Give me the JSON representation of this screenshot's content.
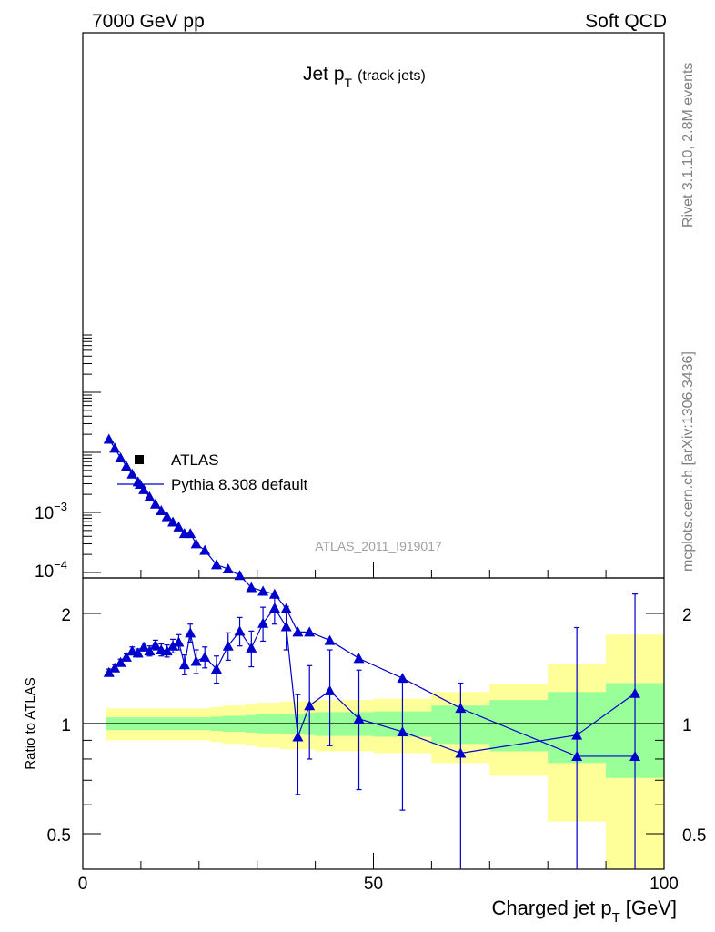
{
  "header": {
    "left": "7000 GeV pp",
    "right": "Soft QCD"
  },
  "side_text": {
    "rivet": "Rivet 3.1.10,  2.8M events",
    "mcplots": "mcplots.cern.ch [arXiv:1306.3436]"
  },
  "chart_data": {
    "type": "line",
    "title_main": "Jet p",
    "title_sub": "T",
    "title_suffix": "(track jets)",
    "watermark": "ATLAS_2011_I919017",
    "xlabel_main": "Charged jet p",
    "xlabel_sub": "T",
    "xlabel_suffix": "[GeV]",
    "ylabel_ratio": "Ratio to ATLAS",
    "xlim": [
      0,
      100
    ],
    "x_ticks": [
      "0",
      "50",
      "100"
    ],
    "upper_y_tick_labels": [
      {
        "base": "10",
        "exp": "−3"
      },
      {
        "base": "10",
        "exp": "−4"
      }
    ],
    "ratio_ylim": [
      0.4,
      2.3
    ],
    "ratio_y_ticks": [
      "0.5",
      "1",
      "2"
    ],
    "legend": [
      {
        "label": "ATLAS",
        "marker": "square",
        "color": "#000000"
      },
      {
        "label": "Pythia 8.308 default",
        "marker": "triangle",
        "color": "#0000cc"
      }
    ],
    "legend_position": "lower-left",
    "series": [
      {
        "name": "Pythia 8.308 default",
        "color": "#0000cc",
        "x": [
          4.5,
          5.5,
          6.5,
          7.5,
          8.5,
          9.5,
          10.5,
          11.5,
          12.5,
          13.5,
          14.5,
          15.5,
          16.5,
          17.5,
          18.5,
          19.5,
          21,
          23,
          25,
          27,
          29,
          31,
          33,
          35,
          37,
          39,
          42.5,
          47.5,
          55,
          65,
          85,
          95
        ],
        "y_log10": [
          -1.78,
          -1.93,
          -2.09,
          -2.23,
          -2.36,
          -2.49,
          -2.62,
          -2.74,
          -2.86,
          -2.97,
          -3.07,
          -3.16,
          -3.24,
          -3.35,
          -3.35,
          -3.52,
          -3.63,
          -3.87,
          -3.94,
          -4.05,
          -4.25,
          -4.31,
          -4.36,
          -4.6,
          -4.99,
          -4.99,
          -5.13,
          -5.43,
          -5.76,
          -6.26,
          -7.06,
          -7.06
        ],
        "ratio": [
          1.38,
          1.42,
          1.47,
          1.52,
          1.58,
          1.56,
          1.62,
          1.58,
          1.64,
          1.59,
          1.58,
          1.63,
          1.67,
          1.45,
          1.77,
          1.48,
          1.52,
          1.41,
          1.63,
          1.79,
          1.61,
          1.88,
          2.07,
          1.84,
          0.92,
          1.12,
          1.23,
          1.03,
          0.95,
          0.83,
          0.93,
          1.21
        ],
        "ratio_err": [
          0.03,
          0.03,
          0.03,
          0.03,
          0.04,
          0.04,
          0.04,
          0.05,
          0.05,
          0.06,
          0.06,
          0.07,
          0.08,
          0.09,
          0.1,
          0.11,
          0.1,
          0.12,
          0.14,
          0.16,
          0.18,
          0.2,
          0.2,
          0.25,
          0.28,
          0.32,
          0.36,
          0.37,
          0.37,
          0.46,
          0.9,
          1.05
        ]
      }
    ],
    "ratio_bands": {
      "x_edges": [
        4,
        5,
        6,
        7,
        8,
        9,
        10,
        11,
        12,
        13,
        14,
        15,
        16,
        17,
        18,
        19,
        20,
        22,
        24,
        26,
        28,
        30,
        32,
        34,
        36,
        38,
        40,
        45,
        50,
        60,
        70,
        80,
        90,
        100
      ],
      "inner_pct": [
        4,
        4,
        4,
        4,
        4,
        4,
        4,
        4,
        4,
        4,
        4,
        4,
        4,
        4,
        4,
        4,
        4,
        4.5,
        5,
        5,
        5.5,
        6,
        6,
        6.5,
        6.5,
        7,
        7.5,
        7.5,
        8,
        12,
        16,
        22,
        29
      ],
      "outer_pct": [
        10,
        10,
        10,
        10,
        10,
        10,
        10,
        10,
        10,
        10,
        10,
        10,
        10,
        10,
        10,
        10,
        10,
        11,
        12,
        12,
        13,
        14,
        14,
        15,
        15,
        15,
        16,
        16,
        17,
        22,
        28,
        46,
        75
      ]
    }
  }
}
